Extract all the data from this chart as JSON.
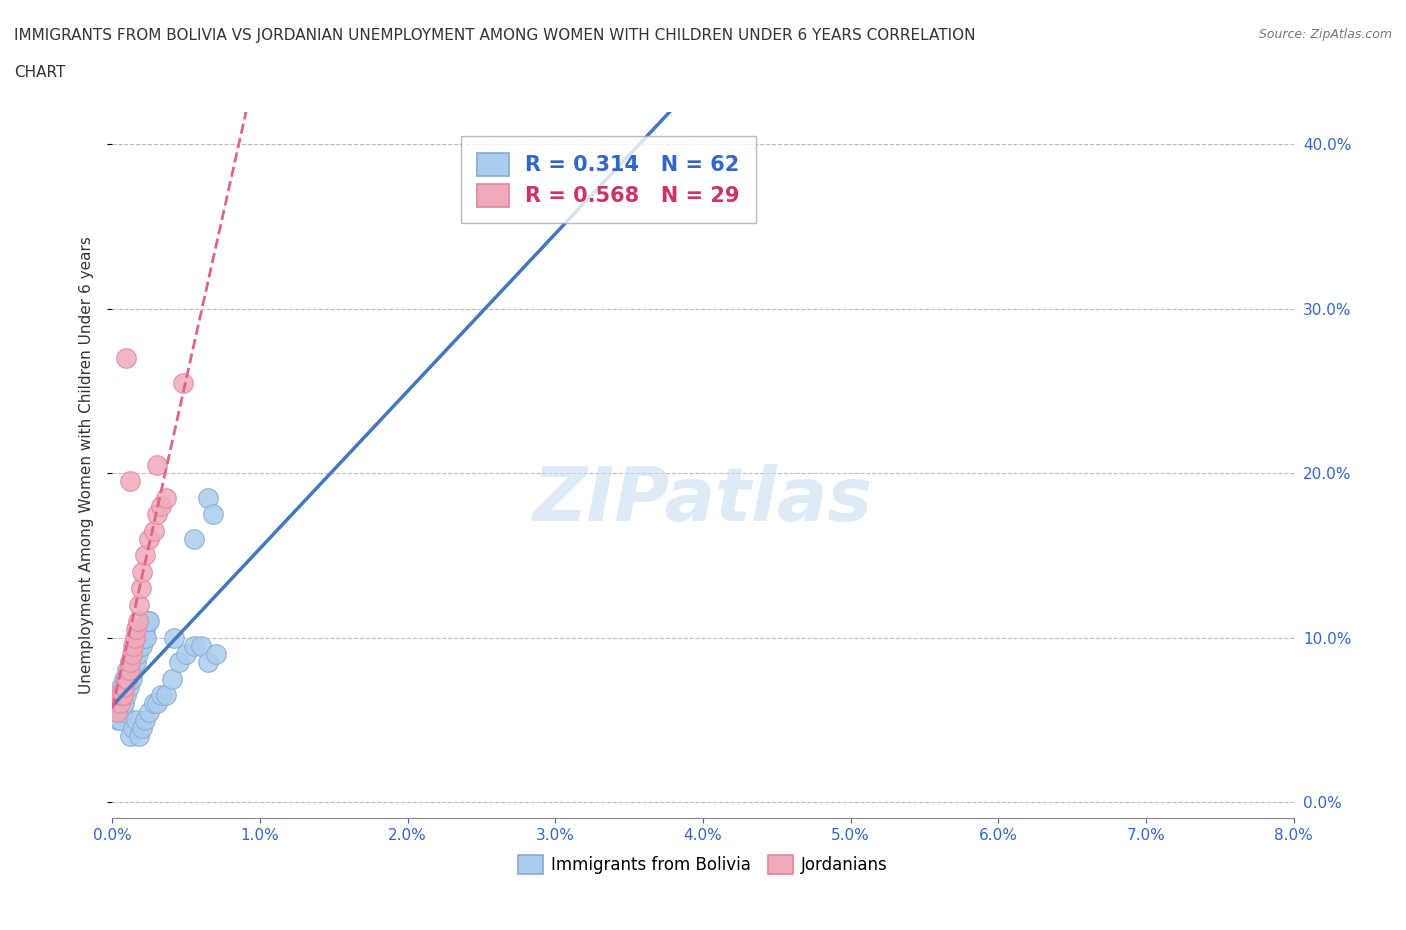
{
  "title_line1": "IMMIGRANTS FROM BOLIVIA VS JORDANIAN UNEMPLOYMENT AMONG WOMEN WITH CHILDREN UNDER 6 YEARS CORRELATION",
  "title_line2": "CHART",
  "source": "Source: ZipAtlas.com",
  "watermark": "ZIPatlas",
  "ylabel": "Unemployment Among Women with Children Under 6 years",
  "xlim": [
    0.0,
    0.08
  ],
  "ylim": [
    -0.01,
    0.42
  ],
  "xticks": [
    0.0,
    0.01,
    0.02,
    0.03,
    0.04,
    0.05,
    0.06,
    0.07,
    0.08
  ],
  "yticks": [
    0.0,
    0.1,
    0.2,
    0.3,
    0.4
  ],
  "xtick_labels": [
    "0.0%",
    "1.0%",
    "2.0%",
    "3.0%",
    "4.0%",
    "5.0%",
    "6.0%",
    "7.0%",
    "8.0%"
  ],
  "ytick_labels": [
    "0.0%",
    "10.0%",
    "20.0%",
    "30.0%",
    "40.0%"
  ],
  "series1_color": "#aaccee",
  "series2_color": "#f0aabb",
  "series1_edge": "#88aacc",
  "series2_edge": "#dd8899",
  "line1_color": "#4477bb",
  "line2_color": "#dd6688",
  "R1": 0.314,
  "N1": 62,
  "R2": 0.568,
  "N2": 29,
  "legend_label1": "Immigrants from Bolivia",
  "legend_label2": "Jordanians",
  "bolivia_x": [
    0.0002,
    0.0003,
    0.0003,
    0.0004,
    0.0004,
    0.0005,
    0.0005,
    0.0005,
    0.0006,
    0.0006,
    0.0007,
    0.0007,
    0.0008,
    0.0008,
    0.0009,
    0.0009,
    0.001,
    0.001,
    0.001,
    0.0011,
    0.0011,
    0.0012,
    0.0012,
    0.0013,
    0.0013,
    0.0014,
    0.0014,
    0.0015,
    0.0015,
    0.0016,
    0.0016,
    0.0017,
    0.0018,
    0.0019,
    0.002,
    0.0021,
    0.0022,
    0.0023,
    0.0024,
    0.0025,
    0.0012,
    0.0014,
    0.0016,
    0.0018,
    0.002,
    0.0022,
    0.0025,
    0.0028,
    0.003,
    0.0033,
    0.0036,
    0.004,
    0.0045,
    0.005,
    0.0055,
    0.006,
    0.0065,
    0.007,
    0.0065,
    0.0068,
    0.0055,
    0.0042
  ],
  "bolivia_y": [
    0.065,
    0.055,
    0.06,
    0.05,
    0.055,
    0.05,
    0.06,
    0.065,
    0.06,
    0.07,
    0.055,
    0.065,
    0.06,
    0.075,
    0.065,
    0.07,
    0.07,
    0.075,
    0.08,
    0.07,
    0.075,
    0.08,
    0.085,
    0.075,
    0.08,
    0.085,
    0.09,
    0.085,
    0.09,
    0.085,
    0.095,
    0.09,
    0.095,
    0.1,
    0.095,
    0.1,
    0.105,
    0.1,
    0.11,
    0.11,
    0.04,
    0.045,
    0.05,
    0.04,
    0.045,
    0.05,
    0.055,
    0.06,
    0.06,
    0.065,
    0.065,
    0.075,
    0.085,
    0.09,
    0.095,
    0.095,
    0.085,
    0.09,
    0.185,
    0.175,
    0.16,
    0.1
  ],
  "jordan_x": [
    0.0002,
    0.0003,
    0.0004,
    0.0005,
    0.0006,
    0.0007,
    0.0008,
    0.0009,
    0.001,
    0.0011,
    0.0012,
    0.0013,
    0.0014,
    0.0015,
    0.0016,
    0.0017,
    0.0018,
    0.0019,
    0.002,
    0.0022,
    0.0025,
    0.0028,
    0.003,
    0.0033,
    0.0036,
    0.0009,
    0.0012,
    0.003,
    0.0048
  ],
  "jordan_y": [
    0.06,
    0.055,
    0.065,
    0.06,
    0.065,
    0.065,
    0.07,
    0.075,
    0.075,
    0.08,
    0.085,
    0.09,
    0.095,
    0.1,
    0.105,
    0.11,
    0.12,
    0.13,
    0.14,
    0.15,
    0.16,
    0.165,
    0.175,
    0.18,
    0.185,
    0.27,
    0.195,
    0.205,
    0.255
  ]
}
